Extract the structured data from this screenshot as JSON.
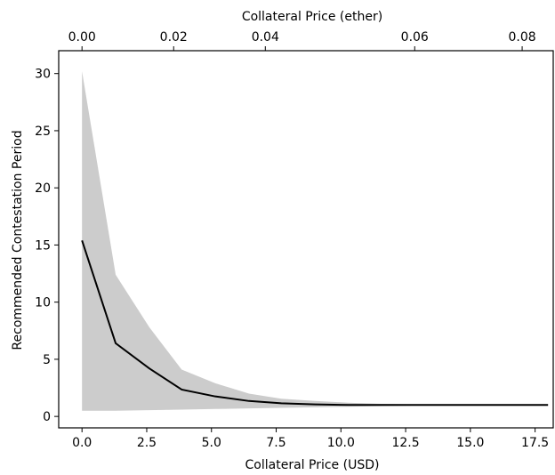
{
  "chart_data": {
    "type": "line",
    "title": "",
    "xlabel": "Collateral Price (USD)",
    "ylabel": "Recommended Contestation Period",
    "top_xlabel": "Collateral Price (ether)",
    "xlim": [
      -0.9,
      18.2
    ],
    "ylim": [
      -1.0,
      32.0
    ],
    "x_ticks": [
      0.0,
      2.5,
      5.0,
      7.5,
      10.0,
      12.5,
      15.0,
      17.5
    ],
    "x_tick_labels": [
      "0.0",
      "2.5",
      "5.0",
      "7.5",
      "10.0",
      "12.5",
      "15.0",
      "17.5"
    ],
    "y_ticks": [
      0,
      5,
      10,
      15,
      20,
      25,
      30
    ],
    "y_tick_labels": [
      "0",
      "5",
      "10",
      "15",
      "20",
      "25",
      "30"
    ],
    "top_x_ticks": [
      0.0,
      3.54,
      7.08,
      12.85,
      17.0
    ],
    "top_x_tick_labels": [
      "0.00",
      "0.02",
      "0.04",
      "0.06",
      "0.08"
    ],
    "grid": false,
    "series": [
      {
        "x": [
          0.0,
          1.3,
          2.6,
          3.85,
          5.15,
          6.45,
          7.7,
          9.0,
          10.3,
          11.55,
          12.85,
          14.1,
          15.4,
          16.7,
          18.0
        ],
        "values": [
          15.4,
          6.4,
          4.2,
          2.35,
          1.75,
          1.35,
          1.15,
          1.05,
          1.0,
          1.0,
          1.0,
          1.0,
          1.0,
          1.0,
          1.0
        ],
        "color": "#000000"
      }
    ],
    "band": {
      "x": [
        0.0,
        1.3,
        2.6,
        3.85,
        5.15,
        6.45,
        7.7,
        9.0,
        10.3,
        11.55,
        12.85,
        14.1,
        15.4,
        16.7,
        18.0
      ],
      "upper": [
        30.2,
        12.4,
        7.8,
        4.1,
        2.9,
        2.0,
        1.55,
        1.35,
        1.2,
        1.1,
        1.05,
        1.0,
        1.0,
        1.0,
        1.0
      ],
      "lower": [
        0.5,
        0.5,
        0.55,
        0.6,
        0.65,
        0.7,
        0.75,
        0.8,
        0.85,
        0.9,
        0.95,
        0.95,
        1.0,
        1.0,
        1.0
      ],
      "color": "#cccccc"
    }
  }
}
